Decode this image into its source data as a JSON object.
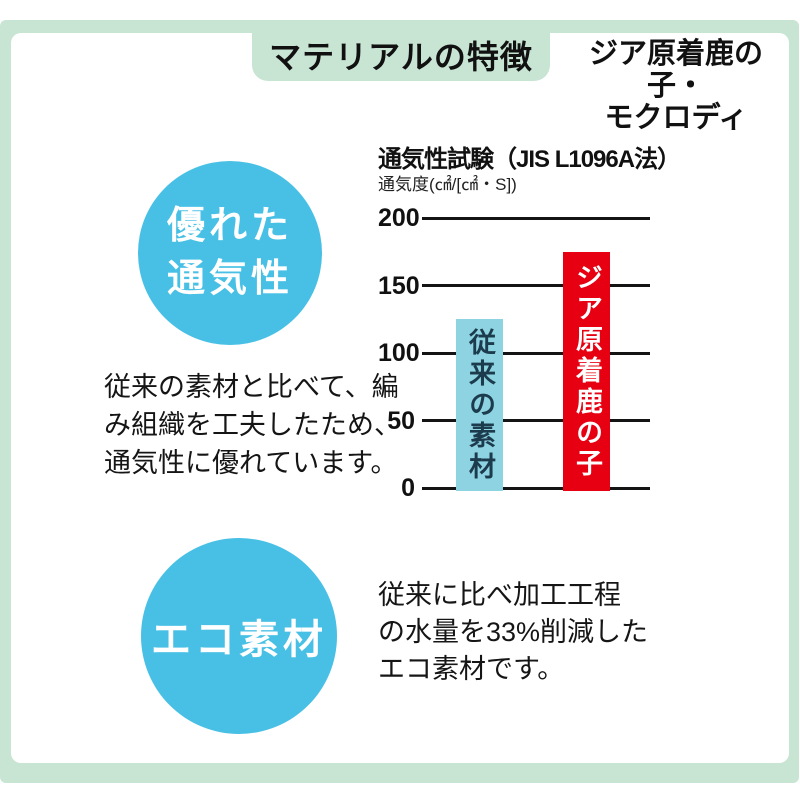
{
  "page": {
    "title_tab": "マテリアルの特徴",
    "product_name_line1": "ジア原着鹿の子・",
    "product_name_line2": "モクロディ"
  },
  "colors": {
    "frame_green": "#c8e5d4",
    "circle_blue": "#48c0e6",
    "bar_blue": "#8ed3e1",
    "bar_red": "#e60012",
    "bar_label_dark": "#1c3c4e",
    "bar_label_light": "#ffffff",
    "text_dark": "#111111"
  },
  "section_breathability": {
    "badge_line1": "優れた",
    "badge_line2": "通気性",
    "description": "従来の素材と比べて、編\nみ組織を工夫したため、\n通気性に優れています。"
  },
  "section_eco": {
    "badge": "エコ素材",
    "description": "従来に比べ加工工程\nの水量を33%削減した\nエコ素材です。"
  },
  "chart_data": {
    "type": "bar",
    "title": "通気性試験（JIS L1096A法）",
    "ylabel": "通気度(㎠/[㎠・S])",
    "categories": [
      "従来の素材",
      "ジア原着鹿の子"
    ],
    "values": [
      125,
      175
    ],
    "bar_colors": [
      "#8ed3e1",
      "#e60012"
    ],
    "label_colors": [
      "#1c3c4e",
      "#ffffff"
    ],
    "yticks": [
      200,
      150,
      100,
      50,
      0
    ],
    "ylim": [
      0,
      200
    ],
    "grid": true,
    "legend": "none"
  }
}
